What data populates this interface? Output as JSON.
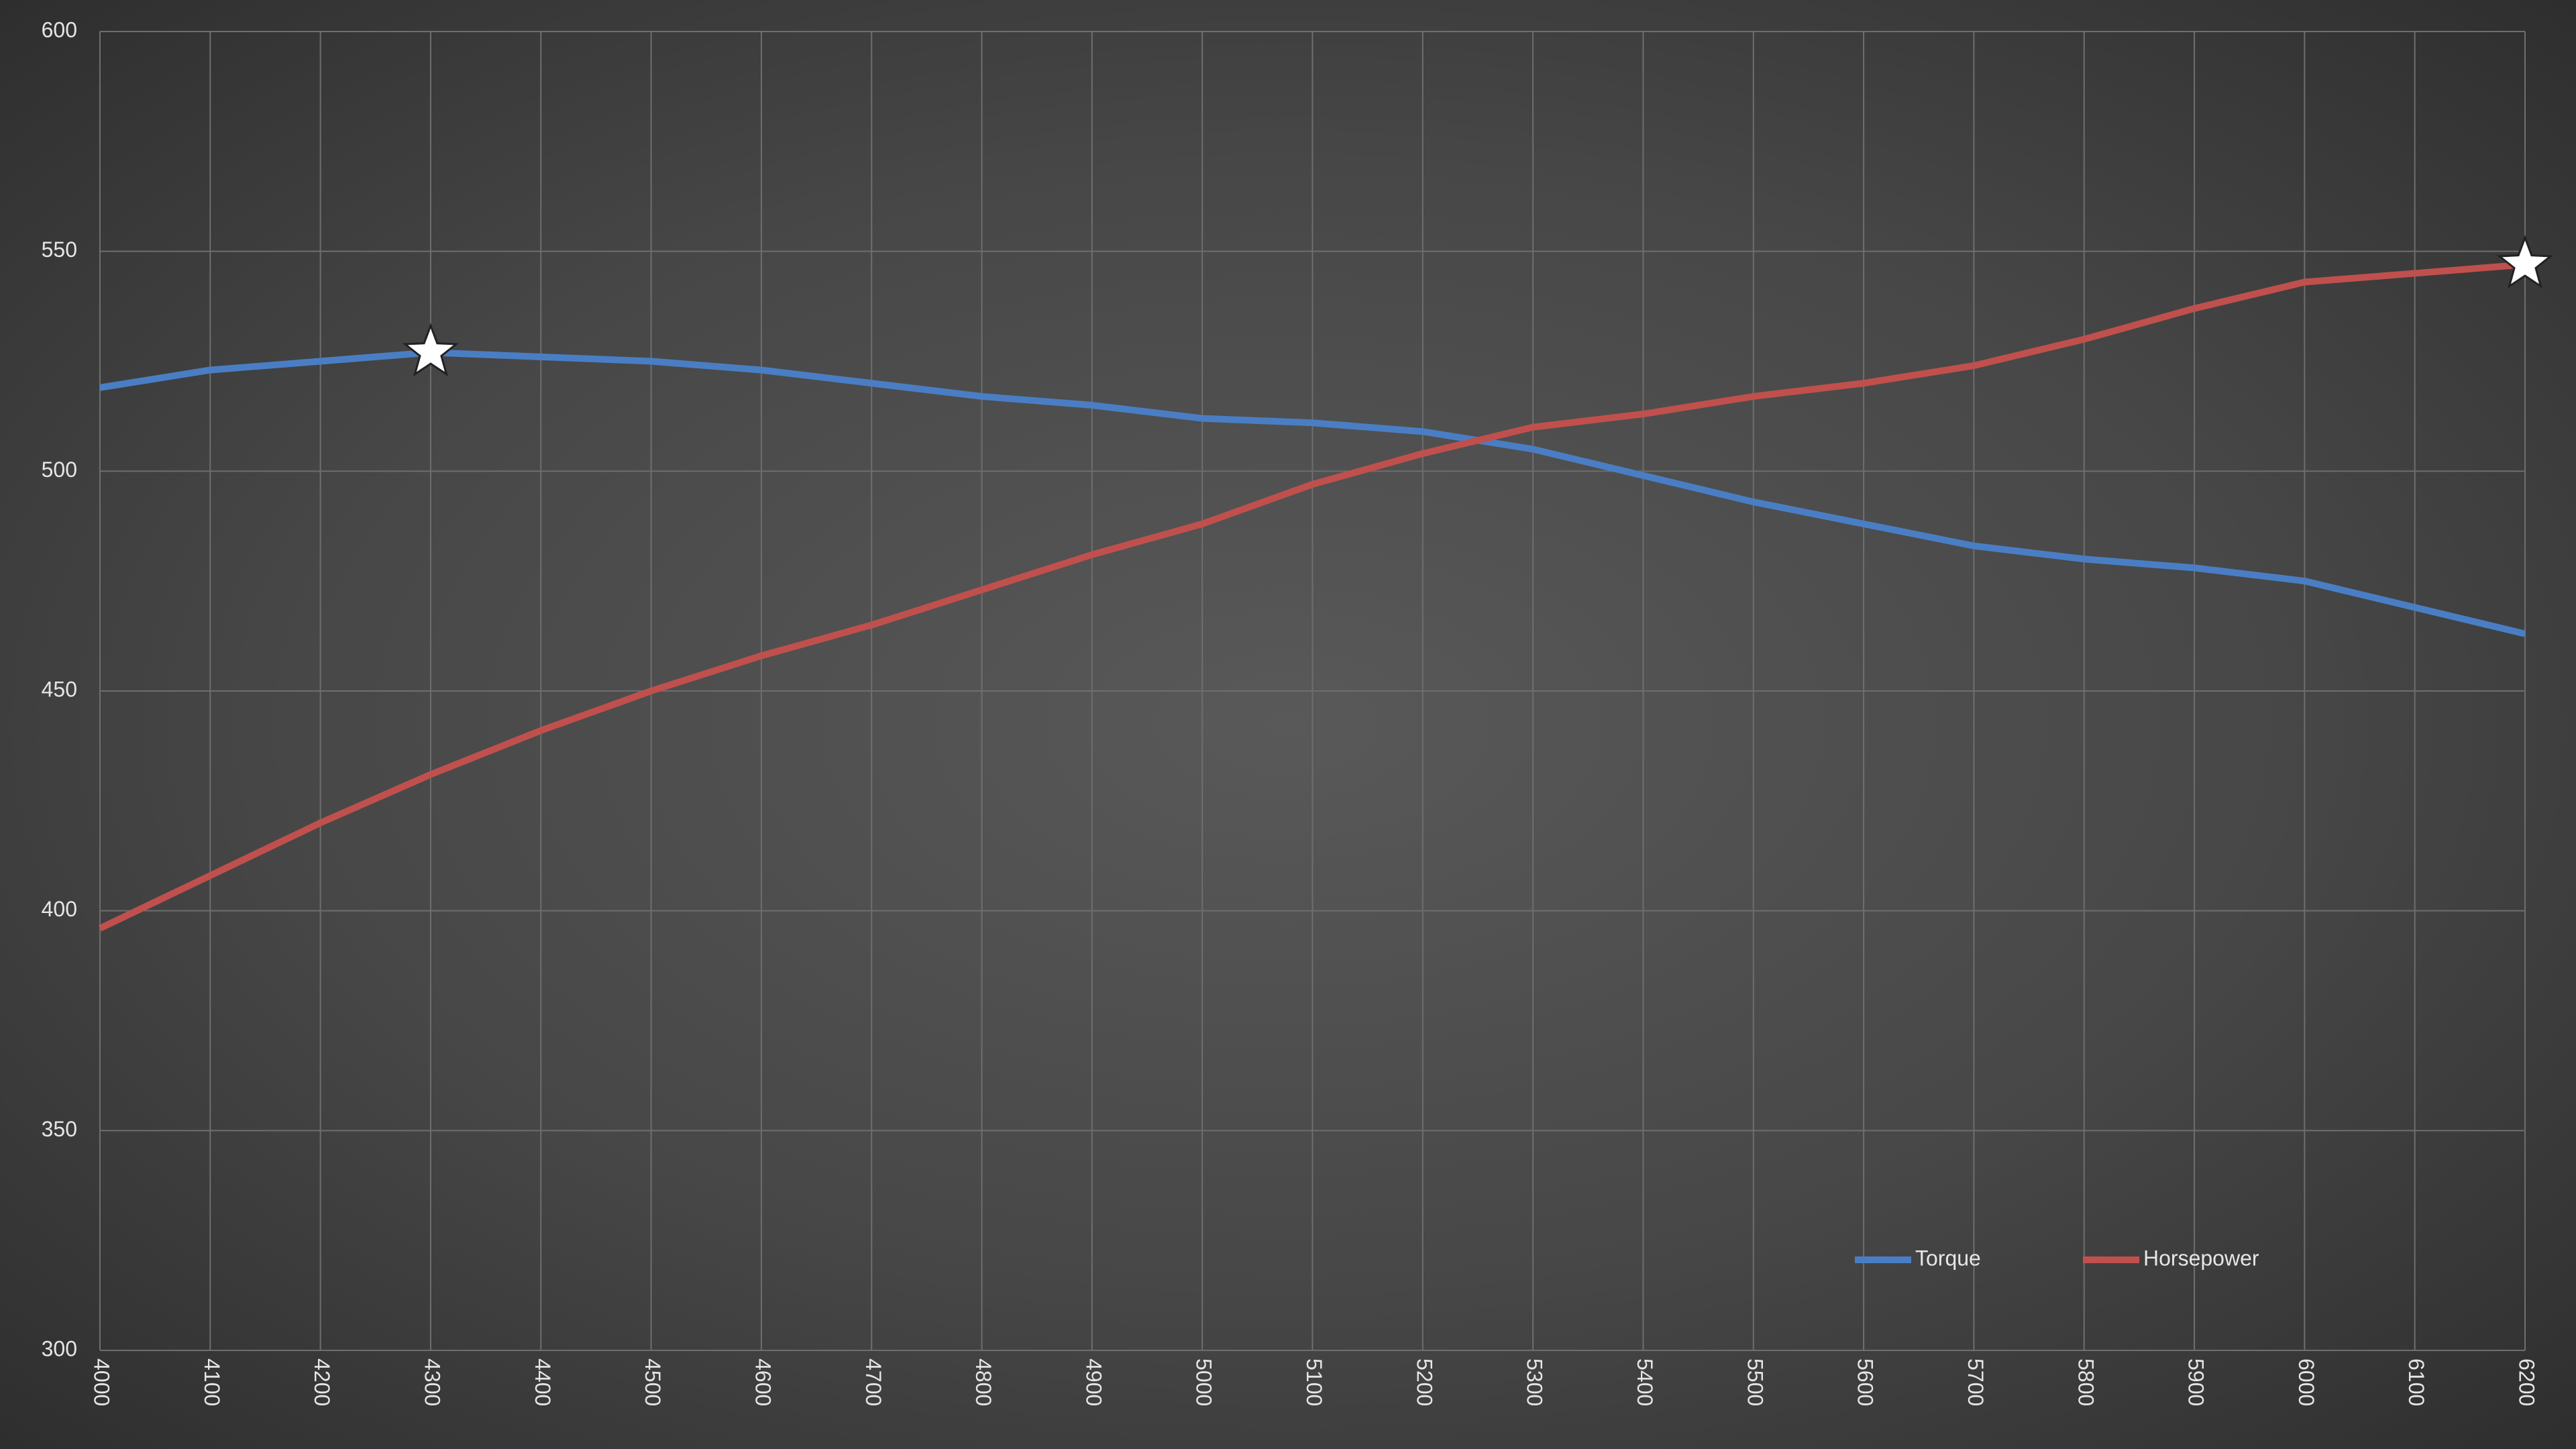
{
  "chart_data": {
    "type": "line",
    "x": [
      4000,
      4100,
      4200,
      4300,
      4400,
      4500,
      4600,
      4700,
      4800,
      4900,
      5000,
      5100,
      5200,
      5300,
      5400,
      5500,
      5600,
      5700,
      5800,
      5900,
      6000,
      6100,
      6200
    ],
    "series": [
      {
        "name": "Torque",
        "color": "#4a7ec4",
        "values": [
          519,
          523,
          525,
          527,
          526,
          525,
          523,
          520,
          517,
          515,
          512,
          511,
          509,
          505,
          499,
          493,
          488,
          483,
          480,
          478,
          475,
          469,
          463
        ]
      },
      {
        "name": "Horsepower",
        "color": "#c0504d",
        "values": [
          396,
          408,
          420,
          431,
          441,
          450,
          458,
          465,
          473,
          481,
          488,
          497,
          504,
          510,
          513,
          517,
          520,
          524,
          530,
          537,
          543,
          545,
          547
        ]
      }
    ],
    "xlim": [
      4000,
      6200
    ],
    "xticks": [
      4000,
      4100,
      4200,
      4300,
      4400,
      4500,
      4600,
      4700,
      4800,
      4900,
      5000,
      5100,
      5200,
      5300,
      5400,
      5500,
      5600,
      5700,
      5800,
      5900,
      6000,
      6100,
      6200
    ],
    "ylim": [
      300,
      600
    ],
    "yticks": [
      300,
      350,
      400,
      450,
      500,
      550,
      600
    ],
    "grid": true,
    "legend": "lower right",
    "max_marker": "star"
  }
}
